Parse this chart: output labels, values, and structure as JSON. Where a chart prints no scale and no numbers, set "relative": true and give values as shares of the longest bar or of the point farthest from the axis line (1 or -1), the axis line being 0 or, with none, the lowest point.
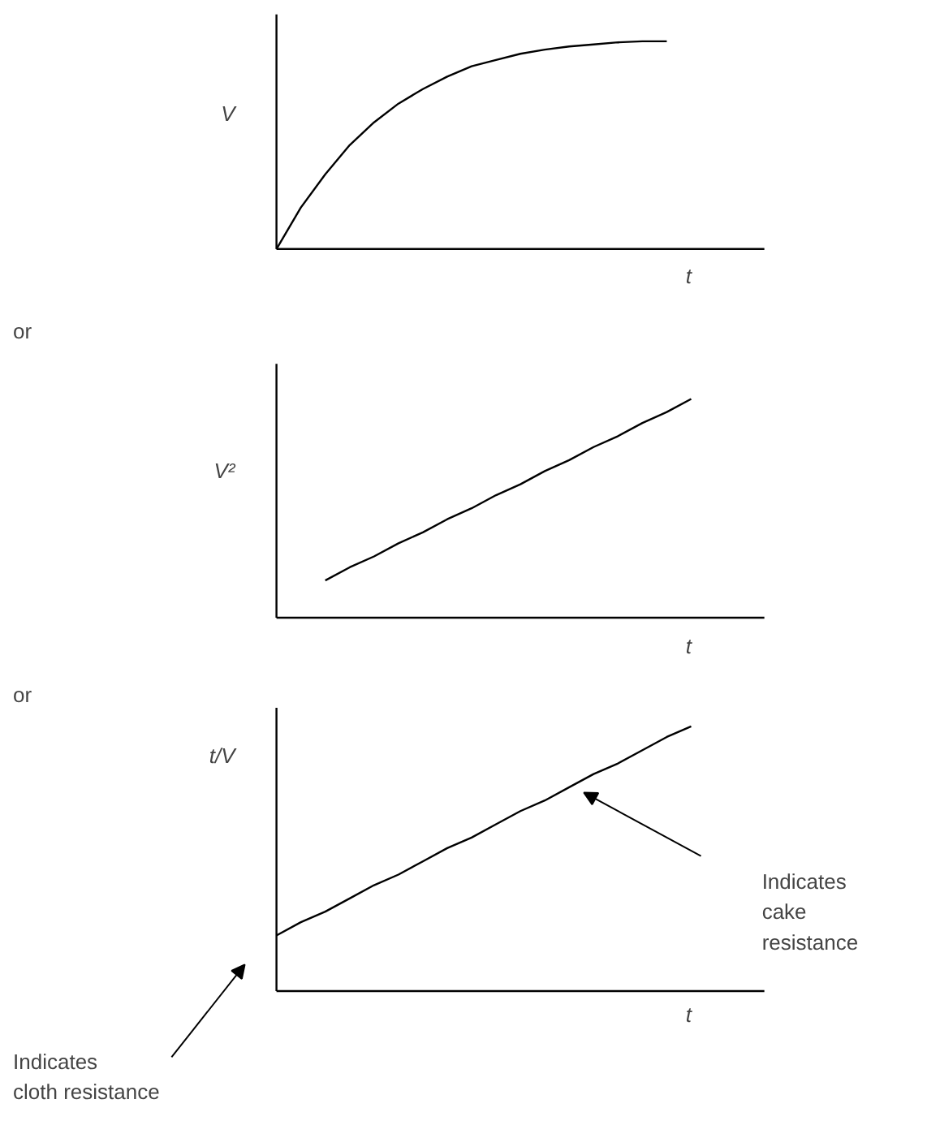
{
  "chart_data": [
    {
      "type": "line",
      "relative": true,
      "ylabel": "V",
      "xlabel": "t",
      "categories": [
        null,
        null,
        null,
        null,
        null,
        null,
        null,
        null,
        null,
        null,
        null,
        null,
        null,
        null,
        null,
        null,
        null,
        null,
        null,
        null,
        null
      ],
      "series": [
        {
          "color": "#000000",
          "values": [
            0,
            0.2,
            0.36,
            0.5,
            0.61,
            0.7,
            0.77,
            0.83,
            0.88,
            0.91,
            0.94,
            0.96,
            0.975,
            0.985,
            0.995,
            1,
            1,
            null,
            null,
            null,
            null
          ]
        }
      ]
    },
    {
      "type": "line",
      "relative": true,
      "ylabel": "V²",
      "xlabel": "t",
      "annotations": [
        "or"
      ],
      "categories": [
        null,
        null,
        null,
        null,
        null,
        null,
        null,
        null,
        null,
        null,
        null,
        null,
        null,
        null,
        null,
        null,
        null,
        null,
        null,
        null,
        null
      ],
      "series": [
        {
          "color": "#000000",
          "values": [
            null,
            null,
            0.17,
            0.23,
            0.28,
            0.34,
            0.39,
            0.45,
            0.5,
            0.56,
            0.61,
            0.67,
            0.72,
            0.78,
            0.83,
            0.89,
            0.94,
            1,
            null,
            null,
            null
          ]
        }
      ]
    },
    {
      "type": "line",
      "relative": true,
      "ylabel": "t/V",
      "xlabel": "t",
      "annotations": [
        "or",
        "Indicates\ncake\nresistance",
        "Indicates\ncloth resistance"
      ],
      "categories": [
        null,
        null,
        null,
        null,
        null,
        null,
        null,
        null,
        null,
        null,
        null,
        null,
        null,
        null,
        null,
        null,
        null,
        null,
        null,
        null,
        null
      ],
      "series": [
        {
          "color": "#000000",
          "values": [
            0.21,
            0.26,
            0.3,
            0.35,
            0.4,
            0.44,
            0.49,
            0.54,
            0.58,
            0.63,
            0.68,
            0.72,
            0.77,
            0.82,
            0.86,
            0.91,
            0.96,
            1,
            null,
            null,
            null
          ]
        }
      ]
    }
  ]
}
